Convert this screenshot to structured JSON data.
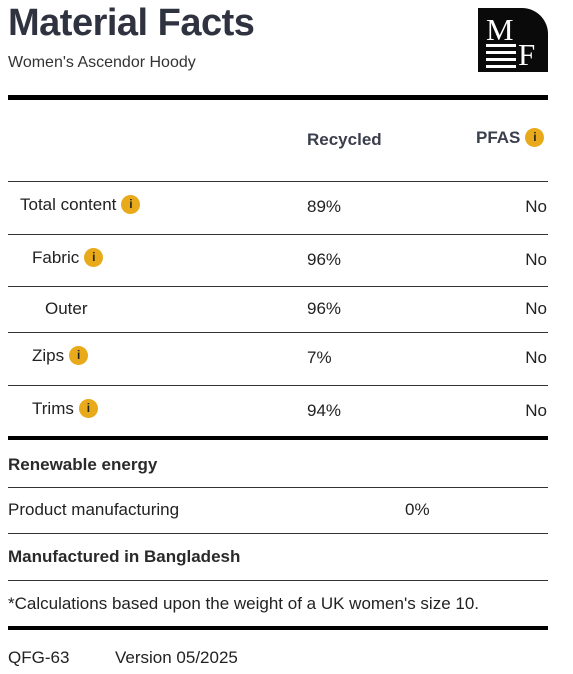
{
  "header": {
    "title": "Material Facts",
    "subtitle": "Women's Ascendor Hoody",
    "logo_letters": [
      "M",
      "F"
    ]
  },
  "columns": {
    "recycled": "Recycled",
    "pfas": "PFAS"
  },
  "rows": [
    {
      "label": "Total content",
      "recycled": "89%",
      "pfas": "No",
      "info": true
    },
    {
      "label": "Fabric",
      "recycled": "96%",
      "pfas": "No",
      "info": true
    },
    {
      "label": "Outer",
      "recycled": "96%",
      "pfas": "No",
      "info": false
    },
    {
      "label": "Zips",
      "recycled": "7%",
      "pfas": "No",
      "info": true
    },
    {
      "label": "Trims",
      "recycled": "94%",
      "pfas": "No",
      "info": true
    }
  ],
  "renewable": {
    "heading": "Renewable energy",
    "label": "Product manufacturing",
    "value": "0%"
  },
  "origin": "Manufactured in Bangladesh",
  "footnote": "*Calculations based upon the weight of a UK women's size 10.",
  "footer": {
    "code": "QFG-63",
    "version": "Version 05/2025"
  },
  "info_icon_glyph": "i",
  "colors": {
    "info_badge": "#e8a91a",
    "title": "#2f3340"
  }
}
